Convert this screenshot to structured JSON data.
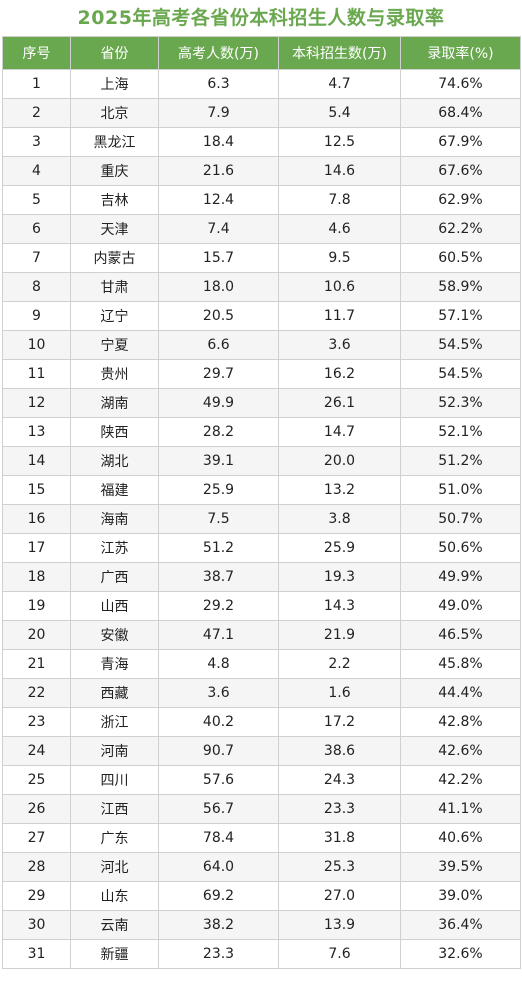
{
  "title": "2025年高考各省份本科招生人数与录取率",
  "headers": [
    "序号",
    "省份",
    "高考人数(万)",
    "本科招生数(万)",
    "录取率(%)"
  ],
  "rows": [
    [
      "1",
      "上海",
      "6.3",
      "4.7",
      "74.6%"
    ],
    [
      "2",
      "北京",
      "7.9",
      "5.4",
      "68.4%"
    ],
    [
      "3",
      "黑龙江",
      "18.4",
      "12.5",
      "67.9%"
    ],
    [
      "4",
      "重庆",
      "21.6",
      "14.6",
      "67.6%"
    ],
    [
      "5",
      "吉林",
      "12.4",
      "7.8",
      "62.9%"
    ],
    [
      "6",
      "天津",
      "7.4",
      "4.6",
      "62.2%"
    ],
    [
      "7",
      "内蒙古",
      "15.7",
      "9.5",
      "60.5%"
    ],
    [
      "8",
      "甘肃",
      "18.0",
      "10.6",
      "58.9%"
    ],
    [
      "9",
      "辽宁",
      "20.5",
      "11.7",
      "57.1%"
    ],
    [
      "10",
      "宁夏",
      "6.6",
      "3.6",
      "54.5%"
    ],
    [
      "11",
      "贵州",
      "29.7",
      "16.2",
      "54.5%"
    ],
    [
      "12",
      "湖南",
      "49.9",
      "26.1",
      "52.3%"
    ],
    [
      "13",
      "陕西",
      "28.2",
      "14.7",
      "52.1%"
    ],
    [
      "14",
      "湖北",
      "39.1",
      "20.0",
      "51.2%"
    ],
    [
      "15",
      "福建",
      "25.9",
      "13.2",
      "51.0%"
    ],
    [
      "16",
      "海南",
      "7.5",
      "3.8",
      "50.7%"
    ],
    [
      "17",
      "江苏",
      "51.2",
      "25.9",
      "50.6%"
    ],
    [
      "18",
      "广西",
      "38.7",
      "19.3",
      "49.9%"
    ],
    [
      "19",
      "山西",
      "29.2",
      "14.3",
      "49.0%"
    ],
    [
      "20",
      "安徽",
      "47.1",
      "21.9",
      "46.5%"
    ],
    [
      "21",
      "青海",
      "4.8",
      "2.2",
      "45.8%"
    ],
    [
      "22",
      "西藏",
      "3.6",
      "1.6",
      "44.4%"
    ],
    [
      "23",
      "浙江",
      "40.2",
      "17.2",
      "42.8%"
    ],
    [
      "24",
      "河南",
      "90.7",
      "38.6",
      "42.6%"
    ],
    [
      "25",
      "四川",
      "57.6",
      "24.3",
      "42.2%"
    ],
    [
      "26",
      "江西",
      "56.7",
      "23.3",
      "41.1%"
    ],
    [
      "27",
      "广东",
      "78.4",
      "31.8",
      "40.6%"
    ],
    [
      "28",
      "河北",
      "64.0",
      "25.3",
      "39.5%"
    ],
    [
      "29",
      "山东",
      "69.2",
      "27.0",
      "39.0%"
    ],
    [
      "30",
      "云南",
      "38.2",
      "13.9",
      "36.4%"
    ],
    [
      "31",
      "新疆",
      "23.3",
      "7.6",
      "32.6%"
    ]
  ],
  "colors": {
    "header_bg": "#6aa84f",
    "title": "#6aa84f"
  }
}
